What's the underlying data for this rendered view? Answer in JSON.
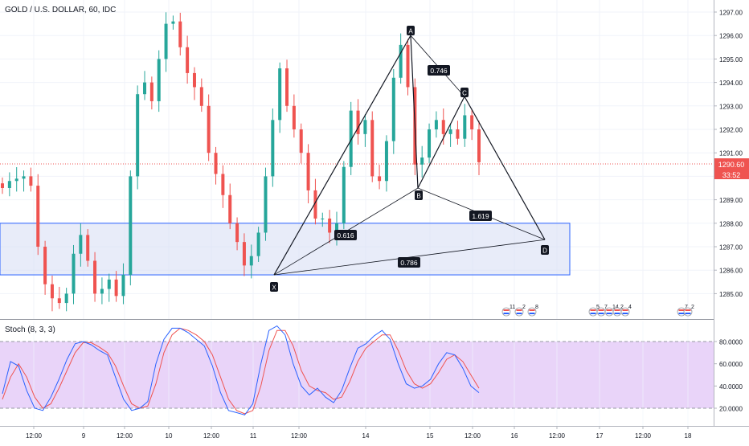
{
  "header": {
    "title": "GOLD / U.S. DOLLAR, 60, IDC"
  },
  "price_scale": {
    "ticks": [
      "1297.00",
      "1296.00",
      "1295.00",
      "1294.00",
      "1293.00",
      "1292.00",
      "1291.00",
      "1290.00",
      "1289.00",
      "1288.00",
      "1287.00",
      "1286.00",
      "1285.00"
    ],
    "last_price": "1290.60",
    "countdown": "33:52",
    "last_price_color": "#ef5350"
  },
  "time_axis": {
    "labels": [
      "12:00",
      "9",
      "12:00",
      "10",
      "12:00",
      "11",
      "12:00",
      "14",
      "15",
      "12:00",
      "16",
      "12:00",
      "17",
      "12:00",
      "18"
    ]
  },
  "pattern": {
    "points": {
      "X": "X",
      "A": "A",
      "B": "B",
      "C": "C",
      "D": "D"
    },
    "ratios": {
      "xb": "0.616",
      "ac": "0.746",
      "bd": "1.619",
      "xd": "0.786"
    },
    "line_color": "#131722"
  },
  "zone": {
    "fill": "#d8dff5",
    "border": "#2962ff",
    "top_price": 1288.0,
    "bottom_price": 1285.8
  },
  "events": {
    "group1": [
      "11",
      "2",
      "8"
    ],
    "group2": [
      "5",
      "7",
      "14",
      "2",
      "4"
    ],
    "group3": [
      "7",
      "2"
    ]
  },
  "oscillator": {
    "title": "Stoch (8, 3, 3)",
    "ticks": [
      "80.0000",
      "60.0000",
      "40.0000",
      "20.0000"
    ],
    "band_fill": "#e2c6f7",
    "k_color": "#2962ff",
    "d_color": "#ef5350"
  },
  "chart_data": {
    "type": "candlestick",
    "title": "GOLD / U.S. DOLLAR, 60, IDC",
    "ylim": [
      1284.6,
      1297.5
    ],
    "up_color": "#26a69a",
    "down_color": "#ef5350",
    "last_price": 1290.6,
    "pattern_prices": {
      "X": 1285.8,
      "A": 1296.0,
      "B": 1289.5,
      "C": 1293.4,
      "D": 1287.3
    },
    "key_closes": [
      1289.5,
      1289.8,
      1289.9,
      1290.0,
      1289.6,
      1287.0,
      1285.4,
      1284.8,
      1284.6,
      1285.0,
      1286.7,
      1287.5,
      1286.4,
      1285.0,
      1285.2,
      1285.6,
      1284.9,
      1285.8,
      1290.0,
      1293.5,
      1294.0,
      1293.2,
      1295.0,
      1296.5,
      1296.6,
      1295.5,
      1294.4,
      1293.8,
      1293.0,
      1291.0,
      1290.1,
      1289.2,
      1288.0,
      1287.2,
      1286.2,
      1286.6,
      1287.6,
      1290.0,
      1292.4,
      1294.6,
      1293.0,
      1292.0,
      1291.0,
      1289.4,
      1288.2,
      1288.2,
      1287.6,
      1288.0,
      1290.4,
      1292.8,
      1291.8,
      1292.4,
      1290.0,
      1289.8,
      1291.5,
      1294.2,
      1295.6,
      1293.8,
      1290.5,
      1290.8,
      1292.0,
      1292.4,
      1291.8,
      1292.0,
      1291.6,
      1292.6,
      1292.0,
      1290.6
    ],
    "stoch_k": [
      33,
      62,
      58,
      36,
      20,
      18,
      30,
      46,
      64,
      78,
      80,
      77,
      72,
      68,
      48,
      28,
      18,
      20,
      26,
      60,
      82,
      92,
      92,
      88,
      82,
      76,
      58,
      34,
      18,
      16,
      14,
      24,
      60,
      90,
      94,
      86,
      60,
      40,
      32,
      38,
      30,
      25,
      36,
      56,
      74,
      78,
      85,
      90,
      82,
      60,
      42,
      38,
      40,
      46,
      60,
      70,
      68,
      56,
      40,
      34
    ],
    "stoch_d": [
      28,
      48,
      60,
      48,
      30,
      20,
      24,
      38,
      54,
      70,
      79,
      79,
      75,
      70,
      58,
      40,
      24,
      20,
      22,
      42,
      70,
      86,
      92,
      90,
      86,
      80,
      68,
      48,
      28,
      18,
      15,
      18,
      40,
      72,
      90,
      90,
      76,
      54,
      40,
      36,
      34,
      28,
      30,
      44,
      62,
      74,
      80,
      86,
      86,
      72,
      54,
      42,
      38,
      42,
      52,
      64,
      68,
      62,
      50,
      38
    ]
  }
}
